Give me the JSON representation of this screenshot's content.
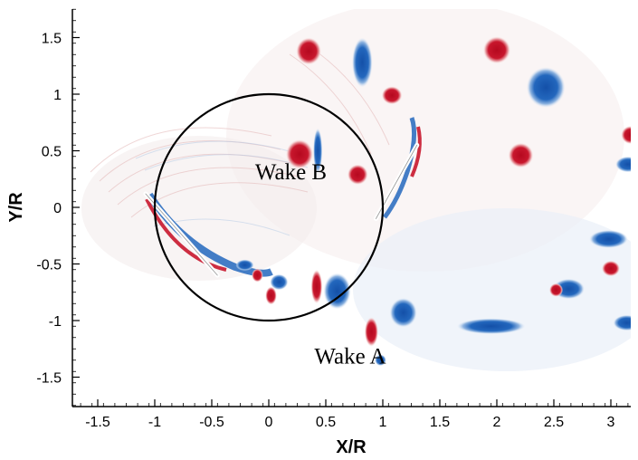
{
  "chart_data": {
    "type": "heatmap",
    "title": "",
    "xlabel": "X/R",
    "ylabel": "Y/R",
    "xlim": [
      -1.75,
      3.25
    ],
    "ylim": [
      -1.75,
      1.75
    ],
    "x_ticks": [
      "-1.5",
      "-1",
      "-0.5",
      "0",
      "0.5",
      "1",
      "1.5",
      "2",
      "2.5",
      "3"
    ],
    "x_tick_values": [
      -1.5,
      -1,
      -0.5,
      0,
      0.5,
      1,
      1.5,
      2,
      2.5,
      3
    ],
    "y_ticks": [
      "1.5",
      "1",
      "0.5",
      "0",
      "-0.5",
      "-1",
      "-1.5"
    ],
    "y_tick_values": [
      1.5,
      1,
      0.5,
      0,
      -0.5,
      -1,
      -1.5
    ],
    "grid": false,
    "colormap": {
      "positive": "#c0142a",
      "negative": "#1f64b8",
      "neutral": "#ffffff"
    },
    "rotor_circle": {
      "center": [
        0,
        0
      ],
      "radius": 1
    },
    "blades": [
      {
        "x1": -1.08,
        "y1": 0.12,
        "x2": -0.45,
        "y2": -0.6
      },
      {
        "x1": 0.94,
        "y1": -0.1,
        "x2": 1.3,
        "y2": 0.55
      }
    ],
    "vortices": [
      {
        "x": 0.35,
        "y": 1.38,
        "rx": 0.11,
        "ry": 0.12,
        "sign": 1
      },
      {
        "x": 0.82,
        "y": 1.28,
        "rx": 0.09,
        "ry": 0.22,
        "sign": -1
      },
      {
        "x": 1.08,
        "y": 0.99,
        "rx": 0.09,
        "ry": 0.08,
        "sign": 1
      },
      {
        "x": 0.27,
        "y": 0.47,
        "rx": 0.12,
        "ry": 0.13,
        "sign": 1
      },
      {
        "x": 0.78,
        "y": 0.29,
        "rx": 0.09,
        "ry": 0.09,
        "sign": 1
      },
      {
        "x": 0.43,
        "y": 0.5,
        "rx": 0.04,
        "ry": 0.2,
        "sign": -1
      },
      {
        "x": 2.0,
        "y": 1.39,
        "rx": 0.12,
        "ry": 0.12,
        "sign": 1
      },
      {
        "x": 2.43,
        "y": 1.06,
        "rx": 0.17,
        "ry": 0.18,
        "sign": -1
      },
      {
        "x": 2.21,
        "y": 0.46,
        "rx": 0.11,
        "ry": 0.11,
        "sign": 1
      },
      {
        "x": 3.17,
        "y": 0.64,
        "rx": 0.08,
        "ry": 0.08,
        "sign": 1
      },
      {
        "x": 3.15,
        "y": 0.38,
        "rx": 0.11,
        "ry": 0.07,
        "sign": -1
      },
      {
        "x": 2.98,
        "y": -0.28,
        "rx": 0.17,
        "ry": 0.08,
        "sign": -1
      },
      {
        "x": 3.0,
        "y": -0.54,
        "rx": 0.08,
        "ry": 0.07,
        "sign": 1
      },
      {
        "x": 2.63,
        "y": -0.72,
        "rx": 0.14,
        "ry": 0.09,
        "sign": -1
      },
      {
        "x": 2.52,
        "y": -0.73,
        "rx": 0.06,
        "ry": 0.06,
        "sign": 1
      },
      {
        "x": 3.14,
        "y": -1.02,
        "rx": 0.12,
        "ry": 0.07,
        "sign": -1
      },
      {
        "x": 0.6,
        "y": -0.74,
        "rx": 0.12,
        "ry": 0.16,
        "sign": -1
      },
      {
        "x": 0.42,
        "y": -0.7,
        "rx": 0.05,
        "ry": 0.15,
        "sign": 1
      },
      {
        "x": 0.09,
        "y": -0.66,
        "rx": 0.08,
        "ry": 0.07,
        "sign": -1
      },
      {
        "x": 0.02,
        "y": -0.78,
        "rx": 0.05,
        "ry": 0.08,
        "sign": 1
      },
      {
        "x": -0.1,
        "y": -0.6,
        "rx": 0.05,
        "ry": 0.06,
        "sign": 1
      },
      {
        "x": -0.21,
        "y": -0.51,
        "rx": 0.08,
        "ry": 0.05,
        "sign": -1
      },
      {
        "x": 1.18,
        "y": -0.93,
        "rx": 0.12,
        "ry": 0.13,
        "sign": -1
      },
      {
        "x": 0.9,
        "y": -1.1,
        "rx": 0.06,
        "ry": 0.13,
        "sign": 1
      },
      {
        "x": 0.98,
        "y": -1.35,
        "rx": 0.05,
        "ry": 0.05,
        "sign": -1
      },
      {
        "x": 1.95,
        "y": -1.05,
        "rx": 0.3,
        "ry": 0.07,
        "sign": -1
      }
    ],
    "annotations": [
      {
        "text": "Wake B",
        "x": -0.12,
        "y": 0.25
      },
      {
        "text": "Wake A",
        "x": 0.4,
        "y": -1.38
      }
    ]
  }
}
